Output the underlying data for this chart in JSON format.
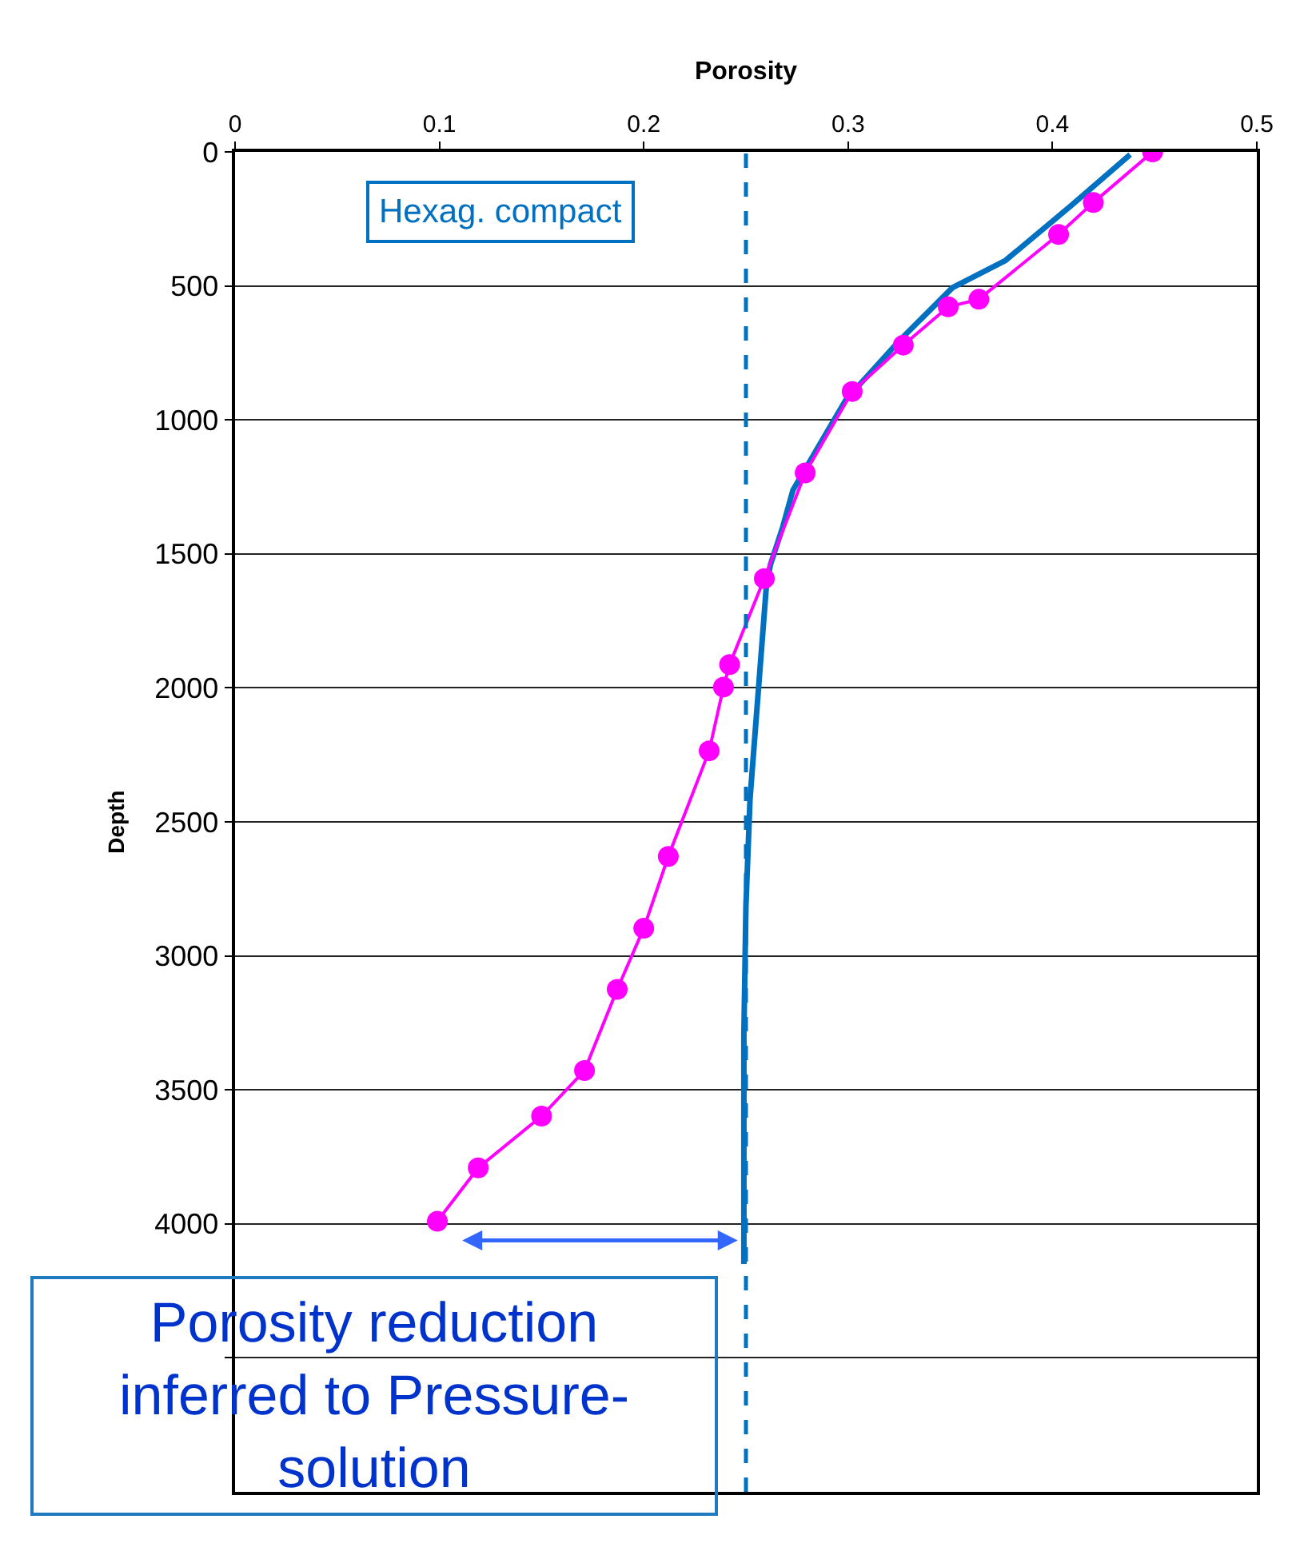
{
  "chart_data": {
    "type": "line",
    "xlabel": "Porosity",
    "ylabel": "Depth",
    "xlim": [
      0,
      0.5
    ],
    "xticks": [
      0,
      0.1,
      0.2,
      0.3,
      0.4,
      0.5
    ],
    "ylim": [
      5000,
      0
    ],
    "yticks": [
      0,
      500,
      1000,
      1500,
      2000,
      2500,
      3000,
      3500,
      4000,
      {
        "value": 4500,
        "label": null
      }
    ],
    "grid": "y",
    "series": [
      {
        "color": "#0070c0",
        "marker": "none",
        "line_style": "solid",
        "x": [
          0.438,
          0.408,
          0.377,
          0.351,
          0.325,
          0.299,
          0.273,
          0.268,
          0.262,
          0.26,
          0.256,
          0.252,
          0.25,
          0.249,
          0.249
        ],
        "values": [
          10,
          208,
          405,
          507,
          705,
          924,
          1262,
          1400,
          1540,
          1620,
          2017,
          2414,
          2812,
          3290,
          4150
        ]
      },
      {
        "color": "#ff00ff",
        "marker": "circle",
        "line_style": "solid",
        "x": [
          0.449,
          0.42,
          0.403,
          0.364,
          0.349,
          0.327,
          0.302,
          0.279,
          0.259,
          0.242,
          0.239,
          0.232,
          0.212,
          0.2,
          0.187,
          0.171,
          0.15,
          0.119,
          0.099
        ],
        "values": [
          0,
          189,
          308,
          550,
          578,
          721,
          894,
          1198,
          1592,
          1913,
          1997,
          2235,
          2629,
          2897,
          3125,
          3428,
          3598,
          3791,
          3990
        ]
      }
    ],
    "ref_lines": [
      {
        "axis": "x",
        "value": 0.25,
        "label": "Hexag. compact",
        "color": "#0070c0",
        "line_style": "dashed"
      }
    ],
    "annotations": [
      "Porosity reduction inferred to Pressure-solution"
    ]
  }
}
